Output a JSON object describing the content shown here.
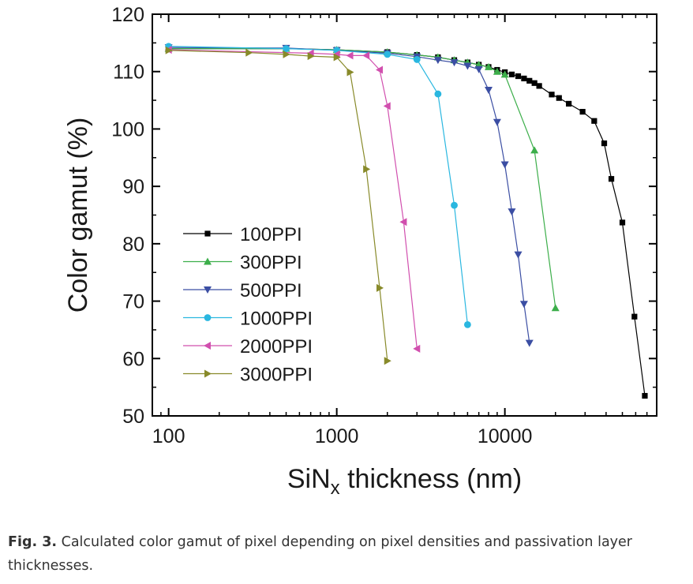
{
  "chart_data": {
    "type": "line",
    "xscale": "log",
    "xlabel": "SiN",
    "xlabel_sub": "x",
    "xlabel_suffix": " thickness (nm)",
    "ylabel": "Color gamut (%)",
    "xlim": [
      80,
      80000
    ],
    "ylim": [
      50,
      120
    ],
    "xticks": [
      100,
      1000,
      10000
    ],
    "xtick_labels": [
      "100",
      "1000",
      "10000"
    ],
    "yticks": [
      50,
      60,
      70,
      80,
      90,
      100,
      110,
      120
    ],
    "ytick_labels": [
      "50",
      "60",
      "70",
      "80",
      "90",
      "100",
      "110",
      "120"
    ],
    "legend_position": "lower-left",
    "series": [
      {
        "name": "100PPI",
        "marker": "square",
        "color": "#000000",
        "x": [
          100,
          500,
          1000,
          2000,
          3000,
          4000,
          5000,
          6000,
          7000,
          8000,
          9000,
          10000,
          11000,
          12000,
          13000,
          14000,
          15000,
          16000,
          19000,
          21000,
          24000,
          29000,
          34000,
          39000,
          43000,
          50000,
          59000,
          68000
        ],
        "y": [
          114,
          114,
          113.8,
          113.4,
          112.9,
          112.5,
          112,
          111.6,
          111.2,
          110.8,
          110.3,
          109.9,
          109.5,
          109.2,
          108.8,
          108.4,
          108,
          107.5,
          106,
          105.4,
          104.4,
          103,
          101.4,
          97.5,
          91.3,
          83.7,
          67.3,
          53.5
        ]
      },
      {
        "name": "300PPI",
        "marker": "triangle-up",
        "color": "#3cae4a",
        "x": [
          100,
          500,
          1000,
          2000,
          3000,
          4000,
          5000,
          6000,
          7000,
          8000,
          9000,
          10000,
          15000,
          20000
        ],
        "y": [
          114,
          114,
          113.8,
          113.4,
          112.9,
          112.5,
          112,
          111.6,
          111.2,
          110.8,
          110,
          109.5,
          96.3,
          68.8
        ]
      },
      {
        "name": "500PPI",
        "marker": "triangle-down",
        "color": "#3b4ea3",
        "x": [
          100,
          500,
          1000,
          2000,
          3000,
          4000,
          5000,
          6000,
          7000,
          8000,
          9000,
          10000,
          11000,
          12000,
          13000,
          14000
        ],
        "y": [
          114.2,
          114.1,
          113.7,
          113.2,
          112.6,
          112,
          111.6,
          111,
          110.4,
          106.8,
          101.2,
          93.8,
          85.6,
          78.1,
          69.5,
          62.7
        ]
      },
      {
        "name": "1000PPI",
        "marker": "circle",
        "color": "#2ab7e0",
        "x": [
          100,
          500,
          1000,
          2000,
          3000,
          4000,
          5000,
          6000
        ],
        "y": [
          114.4,
          114,
          113.7,
          113,
          112.1,
          106.1,
          86.7,
          65.9
        ]
      },
      {
        "name": "2000PPI",
        "marker": "triangle-left",
        "color": "#d14fae",
        "x": [
          100,
          700,
          1000,
          1200,
          1500,
          1800,
          2000,
          2500,
          3000
        ],
        "y": [
          113.8,
          113.2,
          113,
          112.8,
          112.8,
          110.3,
          104,
          83.8,
          61.7
        ]
      },
      {
        "name": "3000PPI",
        "marker": "triangle-right",
        "color": "#888a2a",
        "x": [
          100,
          300,
          500,
          700,
          1000,
          1200,
          1500,
          1800,
          2000
        ],
        "y": [
          113.7,
          113.3,
          113,
          112.7,
          112.5,
          109.9,
          93,
          72.3,
          59.6
        ]
      }
    ]
  },
  "caption": {
    "label": "Fig. 3.",
    "text": " Calculated color gamut of pixel depending on pixel densities and passivation layer thicknesses."
  }
}
